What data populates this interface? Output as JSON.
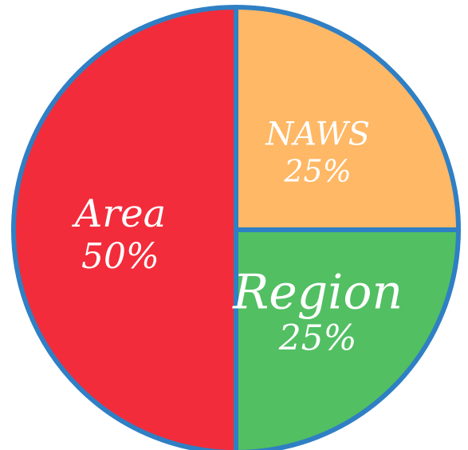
{
  "chart_data": {
    "type": "pie",
    "title": "",
    "slices": [
      {
        "name": "Area",
        "value": 50,
        "label_value": "50%",
        "color": "#f22c3b"
      },
      {
        "name": "NAWS",
        "value": 25,
        "label_value": "25%",
        "color": "#ffb866"
      },
      {
        "name": "Region",
        "value": 25,
        "label_value": "25%",
        "color": "#52bf62"
      }
    ],
    "outline_color": "#2f7fc4",
    "label_color": "#ffffff"
  }
}
